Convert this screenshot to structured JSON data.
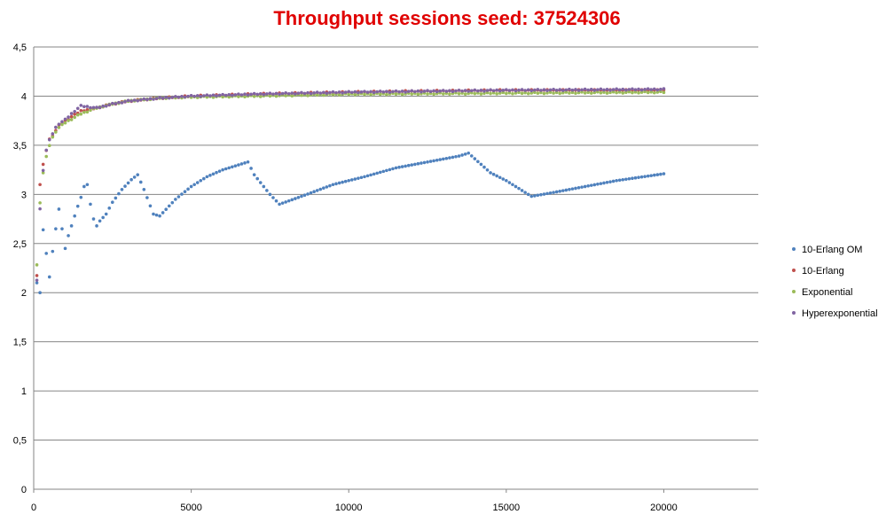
{
  "chart_data": {
    "type": "scatter",
    "title": "Throughput sessions seed: 37524306",
    "title_color": "#e00000",
    "xlabel": "",
    "ylabel": "",
    "xlim": [
      0,
      23000
    ],
    "ylim": [
      0,
      4.5
    ],
    "x_ticks": [
      0,
      5000,
      10000,
      15000,
      20000
    ],
    "x_tick_labels": [
      "0",
      "5000",
      "10000",
      "15000",
      "20000"
    ],
    "y_ticks": [
      0,
      0.5,
      1,
      1.5,
      2,
      2.5,
      3,
      3.5,
      4,
      4.5
    ],
    "y_tick_labels": [
      "0",
      "0,5",
      "1",
      "1,5",
      "2",
      "2,5",
      "3",
      "3,5",
      "4",
      "4,5"
    ],
    "grid": "horizontal",
    "legend_position": "right",
    "x_range": {
      "start": 100,
      "end": 20000,
      "step": 100
    },
    "series": [
      {
        "name": "10-Erlang OM",
        "color": "#4f81bd",
        "shape": "curve",
        "keypoints": [
          [
            100,
            2.1
          ],
          [
            200,
            2.0
          ],
          [
            300,
            2.64
          ],
          [
            500,
            2.16
          ],
          [
            600,
            2.42
          ],
          [
            700,
            2.65
          ],
          [
            800,
            2.85
          ],
          [
            900,
            2.65
          ],
          [
            1000,
            2.45
          ],
          [
            1100,
            2.58
          ],
          [
            1200,
            2.68
          ],
          [
            1300,
            2.78
          ],
          [
            1400,
            2.88
          ],
          [
            1500,
            2.97
          ],
          [
            1600,
            3.08
          ],
          [
            1700,
            3.1
          ],
          [
            1800,
            2.9
          ],
          [
            1900,
            2.75
          ],
          [
            2000,
            2.68
          ],
          [
            2100,
            2.73
          ],
          [
            2300,
            2.8
          ],
          [
            2500,
            2.92
          ],
          [
            2800,
            3.05
          ],
          [
            3100,
            3.15
          ],
          [
            3300,
            3.2
          ],
          [
            3500,
            3.05
          ],
          [
            3800,
            2.8
          ],
          [
            4000,
            2.78
          ],
          [
            4500,
            2.95
          ],
          [
            5000,
            3.08
          ],
          [
            5500,
            3.18
          ],
          [
            6000,
            3.25
          ],
          [
            6500,
            3.3
          ],
          [
            6800,
            3.33
          ],
          [
            7000,
            3.2
          ],
          [
            7500,
            3.0
          ],
          [
            7800,
            2.9
          ],
          [
            8500,
            2.98
          ],
          [
            9500,
            3.1
          ],
          [
            10500,
            3.18
          ],
          [
            11500,
            3.27
          ],
          [
            12500,
            3.33
          ],
          [
            13500,
            3.39
          ],
          [
            13800,
            3.42
          ],
          [
            14500,
            3.22
          ],
          [
            15000,
            3.14
          ],
          [
            15800,
            2.98
          ],
          [
            16500,
            3.02
          ],
          [
            17500,
            3.08
          ],
          [
            18500,
            3.14
          ],
          [
            20000,
            3.21
          ]
        ]
      },
      {
        "name": "10-Erlang",
        "color": "#c0504d",
        "shape": "saturating",
        "keypoints": [
          [
            100,
            2.18
          ],
          [
            200,
            3.1
          ],
          [
            300,
            3.3
          ],
          [
            400,
            3.45
          ],
          [
            500,
            3.56
          ],
          [
            600,
            3.6
          ],
          [
            700,
            3.65
          ],
          [
            800,
            3.7
          ],
          [
            1000,
            3.75
          ],
          [
            1500,
            3.85
          ],
          [
            2000,
            3.88
          ],
          [
            2500,
            3.92
          ],
          [
            3000,
            3.95
          ],
          [
            4000,
            3.98
          ],
          [
            5000,
            4.0
          ],
          [
            7000,
            4.02
          ],
          [
            10000,
            4.04
          ],
          [
            12000,
            4.05
          ],
          [
            15000,
            4.06
          ],
          [
            18000,
            4.06
          ],
          [
            20000,
            4.06
          ]
        ]
      },
      {
        "name": "Exponential",
        "color": "#9bbb59",
        "shape": "saturating",
        "keypoints": [
          [
            100,
            2.28
          ],
          [
            200,
            2.92
          ],
          [
            300,
            3.22
          ],
          [
            400,
            3.38
          ],
          [
            500,
            3.5
          ],
          [
            600,
            3.58
          ],
          [
            700,
            3.64
          ],
          [
            800,
            3.68
          ],
          [
            1000,
            3.73
          ],
          [
            1500,
            3.82
          ],
          [
            2000,
            3.88
          ],
          [
            2500,
            3.92
          ],
          [
            3000,
            3.95
          ],
          [
            4000,
            3.98
          ],
          [
            5000,
            3.99
          ],
          [
            7000,
            4.0
          ],
          [
            10000,
            4.02
          ],
          [
            15000,
            4.03
          ],
          [
            20000,
            4.04
          ]
        ]
      },
      {
        "name": "Hyperexponential",
        "color": "#8064a2",
        "shape": "saturating",
        "keypoints": [
          [
            100,
            2.13
          ],
          [
            200,
            2.85
          ],
          [
            300,
            3.25
          ],
          [
            400,
            3.45
          ],
          [
            500,
            3.55
          ],
          [
            600,
            3.62
          ],
          [
            700,
            3.68
          ],
          [
            800,
            3.72
          ],
          [
            1000,
            3.76
          ],
          [
            1300,
            3.85
          ],
          [
            1500,
            3.9
          ],
          [
            2000,
            3.88
          ],
          [
            2500,
            3.92
          ],
          [
            3000,
            3.95
          ],
          [
            4000,
            3.98
          ],
          [
            5000,
            4.0
          ],
          [
            7000,
            4.02
          ],
          [
            10000,
            4.04
          ],
          [
            15000,
            4.06
          ],
          [
            20000,
            4.07
          ]
        ]
      }
    ]
  }
}
